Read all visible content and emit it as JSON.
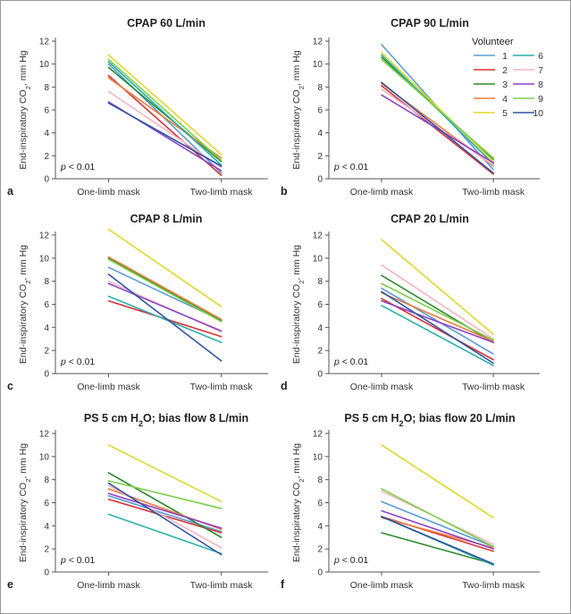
{
  "colors": {
    "1": "#5b9bd5",
    "2": "#d9343a",
    "3": "#2e8b2e",
    "4": "#f07c3a",
    "5": "#e2d72a",
    "6": "#2ab0a8",
    "7": "#f4b6c2",
    "8": "#8e44c8",
    "9": "#7ccf4a",
    "10": "#2f55a4"
  },
  "legend": {
    "title": "Volunteer",
    "entries": [
      "1",
      "2",
      "3",
      "4",
      "5",
      "6",
      "7",
      "8",
      "9",
      "10"
    ]
  },
  "chart_data": [
    {
      "panel": "a",
      "type": "line",
      "title": "CPAP 60 L/min",
      "categories": [
        "One-limb mask",
        "Two-limb mask"
      ],
      "ylabel": "End-inspiratory CO2, mm Hg",
      "ylim": [
        0,
        12
      ],
      "yticks": [
        0,
        2,
        4,
        6,
        8,
        10,
        12
      ],
      "annotation": "p < 0.01",
      "series": [
        {
          "name": "1",
          "values": [
            10.0,
            0.5
          ]
        },
        {
          "name": "2",
          "values": [
            9.0,
            0.3
          ]
        },
        {
          "name": "3",
          "values": [
            9.7,
            1.5
          ]
        },
        {
          "name": "4",
          "values": [
            8.8,
            1.8
          ]
        },
        {
          "name": "5",
          "values": [
            10.8,
            2.1
          ]
        },
        {
          "name": "6",
          "values": [
            10.2,
            1.2
          ]
        },
        {
          "name": "7",
          "values": [
            7.6,
            1.0
          ]
        },
        {
          "name": "8",
          "values": [
            6.7,
            0.7
          ]
        },
        {
          "name": "9",
          "values": [
            10.4,
            1.6
          ]
        },
        {
          "name": "10",
          "values": [
            6.6,
            1.1
          ]
        }
      ]
    },
    {
      "panel": "b",
      "type": "line",
      "title": "CPAP 90 L/min",
      "categories": [
        "One-limb mask",
        "Two-limb mask"
      ],
      "ylabel": "End-inspiratory CO2, mm Hg",
      "ylim": [
        0,
        12
      ],
      "yticks": [
        0,
        2,
        4,
        6,
        8,
        10,
        12
      ],
      "annotation": "p < 0.01",
      "series": [
        {
          "name": "1",
          "values": [
            11.7,
            0.8
          ]
        },
        {
          "name": "2",
          "values": [
            8.1,
            0.4
          ]
        },
        {
          "name": "3",
          "values": [
            10.6,
            1.7
          ]
        },
        {
          "name": "4",
          "values": [
            8.3,
            1.1
          ]
        },
        {
          "name": "5",
          "values": [
            11.0,
            1.5
          ]
        },
        {
          "name": "6",
          "values": [
            10.8,
            1.3
          ]
        },
        {
          "name": "7",
          "values": [
            7.8,
            1.2
          ]
        },
        {
          "name": "8",
          "values": [
            7.3,
            1.4
          ]
        },
        {
          "name": "9",
          "values": [
            10.4,
            1.8
          ]
        },
        {
          "name": "10",
          "values": [
            8.4,
            0.5
          ]
        }
      ]
    },
    {
      "panel": "c",
      "type": "line",
      "title": "CPAP 8 L/min",
      "categories": [
        "One-limb mask",
        "Two-limb mask"
      ],
      "ylabel": "End-inspiratory CO2, mm Hg",
      "ylim": [
        0,
        12
      ],
      "yticks": [
        0,
        2,
        4,
        6,
        8,
        10,
        12
      ],
      "annotation": "p < 0.01",
      "series": [
        {
          "name": "1",
          "values": [
            9.2,
            4.6
          ]
        },
        {
          "name": "2",
          "values": [
            6.3,
            3.2
          ]
        },
        {
          "name": "3",
          "values": [
            10.0,
            4.6
          ]
        },
        {
          "name": "4",
          "values": [
            10.1,
            4.7
          ]
        },
        {
          "name": "5",
          "values": [
            12.5,
            5.8
          ]
        },
        {
          "name": "6",
          "values": [
            6.7,
            2.7
          ]
        },
        {
          "name": "7",
          "values": [
            8.0,
            3.6
          ]
        },
        {
          "name": "8",
          "values": [
            7.8,
            3.7
          ]
        },
        {
          "name": "9",
          "values": [
            9.9,
            4.5
          ]
        },
        {
          "name": "10",
          "values": [
            8.6,
            1.1
          ]
        }
      ]
    },
    {
      "panel": "d",
      "type": "line",
      "title": "CPAP 20 L/min",
      "categories": [
        "One-limb mask",
        "Two-limb mask"
      ],
      "ylabel": "End-inspiratory CO2, mm Hg",
      "ylim": [
        0,
        12
      ],
      "yticks": [
        0,
        2,
        4,
        6,
        8,
        10,
        12
      ],
      "annotation": "p < 0.01",
      "series": [
        {
          "name": "1",
          "values": [
            7.4,
            1.7
          ]
        },
        {
          "name": "2",
          "values": [
            6.5,
            1.2
          ]
        },
        {
          "name": "3",
          "values": [
            8.5,
            2.7
          ]
        },
        {
          "name": "4",
          "values": [
            7.0,
            2.8
          ]
        },
        {
          "name": "5",
          "values": [
            11.6,
            3.4
          ]
        },
        {
          "name": "6",
          "values": [
            5.9,
            0.7
          ]
        },
        {
          "name": "7",
          "values": [
            9.4,
            3.0
          ]
        },
        {
          "name": "8",
          "values": [
            6.3,
            2.7
          ]
        },
        {
          "name": "9",
          "values": [
            7.8,
            2.9
          ]
        },
        {
          "name": "10",
          "values": [
            7.1,
            0.9
          ]
        }
      ]
    },
    {
      "panel": "e",
      "type": "line",
      "title": "PS 5 cm H2O; bias flow 8 L/min",
      "categories": [
        "One-limb mask",
        "Two-limb mask"
      ],
      "ylabel": "End-inspiratory CO2, mm Hg",
      "ylim": [
        0,
        12
      ],
      "yticks": [
        0,
        2,
        4,
        6,
        8,
        10,
        12
      ],
      "annotation": "p < 0.01",
      "series": [
        {
          "name": "1",
          "values": [
            6.6,
            3.5
          ]
        },
        {
          "name": "2",
          "values": [
            6.3,
            3.4
          ]
        },
        {
          "name": "3",
          "values": [
            8.6,
            3.0
          ]
        },
        {
          "name": "4",
          "values": [
            7.2,
            3.7
          ]
        },
        {
          "name": "5",
          "values": [
            11.0,
            6.1
          ]
        },
        {
          "name": "6",
          "values": [
            5.0,
            1.6
          ]
        },
        {
          "name": "7",
          "values": [
            7.5,
            2.1
          ]
        },
        {
          "name": "8",
          "values": [
            6.8,
            3.8
          ]
        },
        {
          "name": "9",
          "values": [
            7.9,
            5.5
          ]
        },
        {
          "name": "10",
          "values": [
            7.7,
            1.5
          ]
        }
      ]
    },
    {
      "panel": "f",
      "type": "line",
      "title": "PS 5 cm H2O; bias flow 20 L/min",
      "categories": [
        "One-limb mask",
        "Two-limb mask"
      ],
      "ylabel": "End-inspiratory CO2, mm Hg",
      "ylim": [
        0,
        12
      ],
      "yticks": [
        0,
        2,
        4,
        6,
        8,
        10,
        12
      ],
      "annotation": "p < 0.01",
      "series": [
        {
          "name": "1",
          "values": [
            6.1,
            2.2
          ]
        },
        {
          "name": "2",
          "values": [
            4.8,
            1.8
          ]
        },
        {
          "name": "3",
          "values": [
            3.4,
            0.7
          ]
        },
        {
          "name": "4",
          "values": [
            4.7,
            2.1
          ]
        },
        {
          "name": "5",
          "values": [
            11.0,
            4.7
          ]
        },
        {
          "name": "6",
          "values": [
            4.8,
            0.6
          ]
        },
        {
          "name": "7",
          "values": [
            7.0,
            2.4
          ]
        },
        {
          "name": "8",
          "values": [
            5.3,
            2.0
          ]
        },
        {
          "name": "9",
          "values": [
            7.2,
            2.2
          ]
        },
        {
          "name": "10",
          "values": [
            4.8,
            0.7
          ]
        }
      ]
    }
  ]
}
